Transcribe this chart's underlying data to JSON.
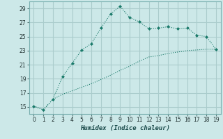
{
  "xlabel": "Humidex (Indice chaleur)",
  "bg_color": "#cce8e8",
  "grid_color": "#aacccc",
  "line_color": "#1a7a6a",
  "xlim": [
    -0.5,
    19.5
  ],
  "ylim": [
    14.0,
    30.0
  ],
  "yticks": [
    15,
    17,
    19,
    21,
    23,
    25,
    27,
    29
  ],
  "xticks": [
    0,
    1,
    2,
    3,
    4,
    5,
    6,
    7,
    8,
    9,
    10,
    11,
    12,
    13,
    14,
    15,
    16,
    17,
    18,
    19
  ],
  "series1_x": [
    0,
    1,
    2,
    3,
    4,
    5,
    6,
    7,
    8,
    9,
    10,
    11,
    12,
    13,
    14,
    15,
    16,
    17,
    18,
    19
  ],
  "series1_y": [
    15.1,
    14.6,
    16.1,
    19.3,
    21.2,
    23.1,
    24.0,
    26.2,
    28.2,
    29.3,
    27.7,
    27.1,
    26.1,
    26.2,
    26.4,
    26.1,
    26.2,
    25.2,
    25.0,
    23.2
  ],
  "series2_x": [
    0,
    1,
    2,
    3,
    4,
    5,
    6,
    7,
    8,
    9,
    10,
    11,
    12,
    13,
    14,
    15,
    16,
    17,
    18,
    19
  ],
  "series2_y": [
    15.1,
    14.6,
    16.1,
    16.8,
    17.3,
    17.8,
    18.3,
    18.9,
    19.5,
    20.2,
    20.8,
    21.5,
    22.1,
    22.3,
    22.6,
    22.8,
    23.0,
    23.1,
    23.2,
    23.2
  ]
}
